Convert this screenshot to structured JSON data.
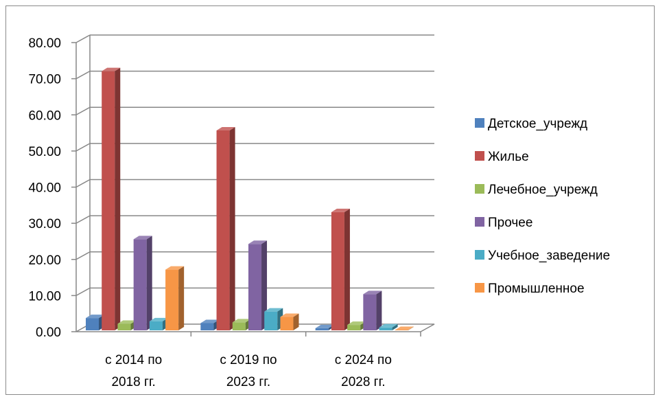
{
  "chart_data": {
    "type": "bar",
    "categories": [
      [
        "с 2014 по",
        "2018 гг."
      ],
      [
        "с 2019 по",
        "2023 гг."
      ],
      [
        "с 2024 по",
        "2028 гг."
      ]
    ],
    "series": [
      {
        "name": "Детское_учрежд",
        "color": "#4f81bd",
        "values": [
          3.4,
          2.0,
          0.6
        ]
      },
      {
        "name": "Жилье",
        "color": "#c0504d",
        "values": [
          71.7,
          55.3,
          32.7
        ]
      },
      {
        "name": "Лечебное_учрежд",
        "color": "#9bbb59",
        "values": [
          1.8,
          2.2,
          1.5
        ]
      },
      {
        "name": "Прочее",
        "color": "#8064a2",
        "values": [
          25.2,
          23.9,
          10.0
        ]
      },
      {
        "name": "Учебное_заведение",
        "color": "#4bacc6",
        "values": [
          2.5,
          5.2,
          0.8
        ]
      },
      {
        "name": "Промышленное",
        "color": "#f79646",
        "values": [
          16.8,
          3.7,
          0.1
        ]
      }
    ],
    "y_ticks": [
      "0.00",
      "10.00",
      "20.00",
      "30.00",
      "40.00",
      "50.00",
      "60.00",
      "70.00",
      "80.00"
    ],
    "ylim": [
      0,
      80
    ],
    "grid": true,
    "legend_position": "right"
  }
}
